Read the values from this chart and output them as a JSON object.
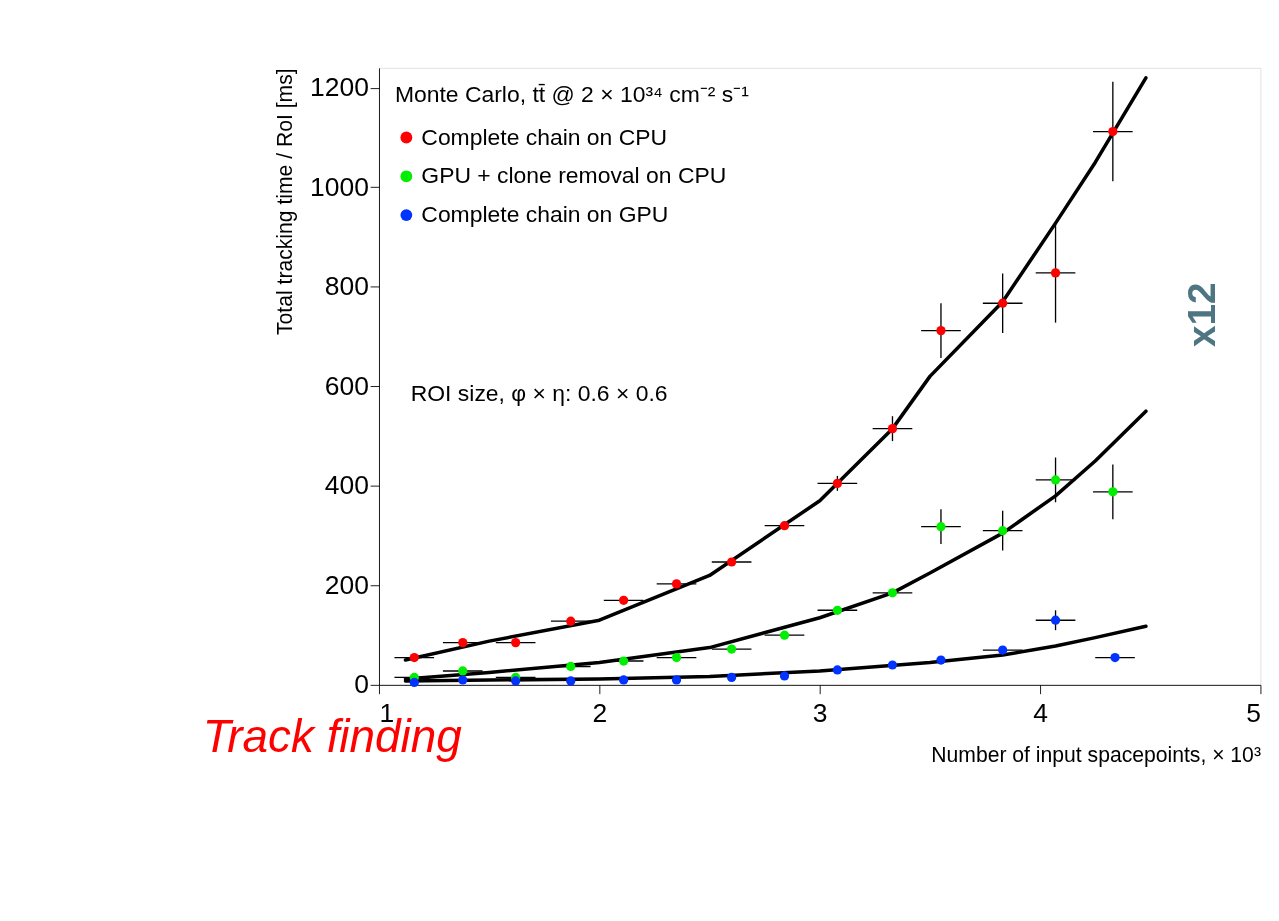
{
  "chart_data": {
    "type": "scatter",
    "xlabel": "Number of input spacepoints, × 10³",
    "ylabel": "Total tracking time / RoI [ms]",
    "legend_title": "Monte Carlo, tt̄ @ 2 × 10³⁴ cm⁻² s⁻¹",
    "xlim": [
      1,
      5
    ],
    "ylim": [
      0,
      1240
    ],
    "xticks": [
      1,
      2,
      3,
      4,
      5
    ],
    "yticks": [
      0,
      200,
      400,
      600,
      800,
      1000,
      1200
    ],
    "grid": false,
    "legend": "top left",
    "marker": "circle",
    "series": [
      {
        "name": "Complete chain on CPU",
        "color": "#ff0000",
        "x": [
          1.16,
          1.38,
          1.62,
          1.87,
          2.11,
          2.35,
          2.6,
          2.84,
          3.08,
          3.33,
          3.55,
          3.83,
          4.07,
          4.33
        ],
        "values": [
          55,
          85,
          85,
          128,
          170,
          203,
          247,
          320,
          405,
          515,
          712,
          767,
          828,
          1112
        ],
        "errors": [
          null,
          null,
          null,
          null,
          null,
          null,
          null,
          null,
          15,
          25,
          55,
          60,
          100,
          100
        ],
        "xerrors": [
          0.09,
          0.09,
          0.09,
          0.09,
          0.09,
          0.09,
          0.09,
          0.09,
          0.09,
          0.09,
          0.09,
          0.09,
          0.09,
          0.09
        ]
      },
      {
        "name": "GPU + clone removal on CPU",
        "color": "#00ee00",
        "x": [
          1.16,
          1.38,
          1.62,
          1.87,
          2.11,
          2.35,
          2.6,
          2.84,
          3.08,
          3.33,
          3.55,
          3.83,
          4.07,
          4.33
        ],
        "values": [
          15,
          28,
          15,
          37,
          48,
          55,
          72,
          100,
          150,
          185,
          318,
          310,
          412,
          388
        ],
        "errors": [
          null,
          null,
          null,
          null,
          null,
          null,
          null,
          null,
          null,
          null,
          35,
          40,
          45,
          55
        ],
        "xerrors": [
          0.09,
          0.09,
          0.09,
          0.09,
          0.09,
          0.09,
          0.09,
          0.09,
          0.09,
          0.09,
          0.09,
          0.09,
          0.09,
          0.09
        ]
      },
      {
        "name": "Complete chain on GPU",
        "color": "#0033ff",
        "x": [
          1.16,
          1.38,
          1.62,
          1.87,
          2.11,
          2.35,
          2.6,
          2.84,
          3.08,
          3.33,
          3.55,
          3.83,
          4.07,
          4.34
        ],
        "values": [
          5,
          10,
          8,
          8,
          10,
          10,
          15,
          18,
          30,
          40,
          50,
          70,
          130,
          55
        ],
        "errors": [
          null,
          null,
          null,
          null,
          null,
          null,
          null,
          null,
          null,
          null,
          null,
          null,
          20,
          null
        ],
        "xerrors": [
          null,
          null,
          null,
          null,
          null,
          null,
          null,
          null,
          null,
          null,
          null,
          0.09,
          0.09,
          0.09
        ]
      },
      {
        "type": "line",
        "marker": "none",
        "color": "#000000",
        "x": [
          1.12,
          1.5,
          2,
          2.5,
          3,
          3.33,
          3.5,
          3.83,
          4.07,
          4.25,
          4.48
        ],
        "values": [
          50,
          88,
          130,
          220,
          370,
          515,
          620,
          770,
          928,
          1050,
          1220
        ]
      },
      {
        "type": "line",
        "marker": "none",
        "color": "#000000",
        "x": [
          1.12,
          1.5,
          2,
          2.5,
          3,
          3.33,
          3.5,
          3.83,
          4.07,
          4.25,
          4.48
        ],
        "values": [
          12,
          25,
          45,
          75,
          135,
          185,
          225,
          305,
          380,
          450,
          550
        ]
      },
      {
        "type": "line",
        "marker": "none",
        "color": "#000000",
        "x": [
          1.12,
          2,
          2.5,
          3,
          3.5,
          3.83,
          4.07,
          4.25,
          4.48
        ],
        "values": [
          8,
          12,
          17,
          28,
          45,
          60,
          78,
          95,
          118
        ]
      }
    ],
    "annotations": [
      "ROI size, φ × η: 0.6 × 0.6",
      "Track finding",
      "x12"
    ]
  }
}
